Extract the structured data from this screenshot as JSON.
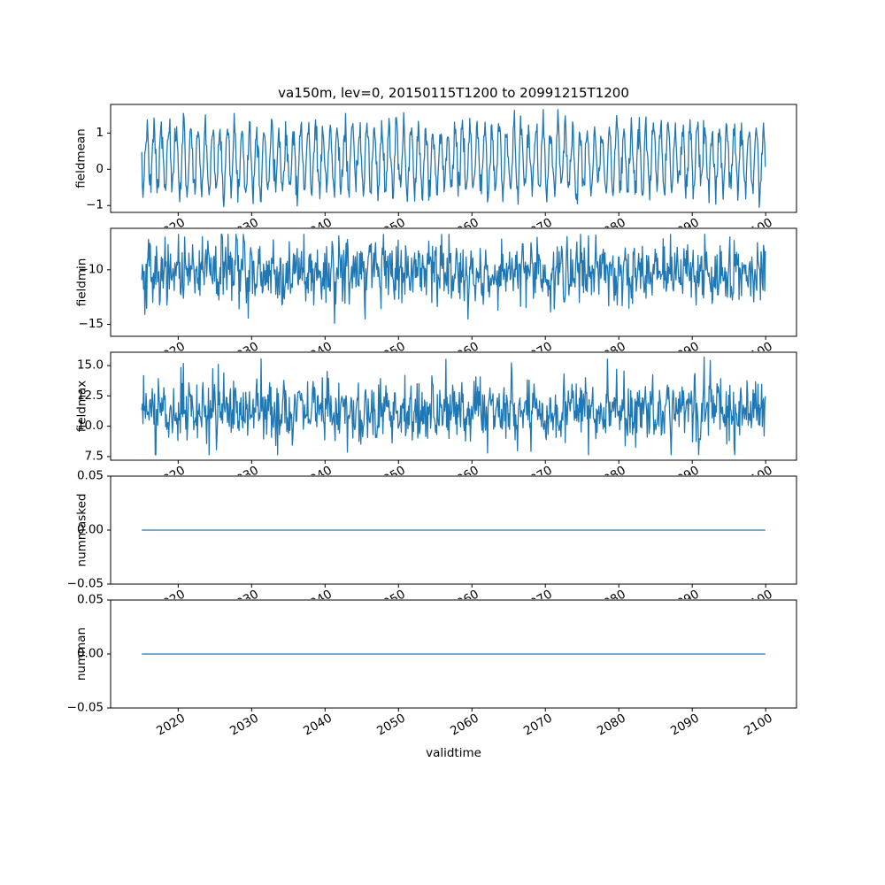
{
  "figure": {
    "title": "va150m, lev=0, 20150115T1200 to 20991215T1200",
    "xlabel": "validtime",
    "background": "#ffffff",
    "line_color": "#1f77b4",
    "frame_color": "#000000",
    "text_color": "#000000"
  },
  "chart_data": [
    {
      "type": "line",
      "ylabel": "fieldmean",
      "xlim": [
        2010.8,
        2104.2
      ],
      "ylim": [
        -1.19,
        1.79
      ],
      "xticks": [
        2020,
        2030,
        2040,
        2050,
        2060,
        2070,
        2080,
        2090,
        2100
      ],
      "xticklabels": [
        "2020",
        "2030",
        "2040",
        "2050",
        "2060",
        "2070",
        "2080",
        "2090",
        "2100"
      ],
      "yticks": [
        -1,
        0,
        1
      ],
      "yticklabels": [
        "−1",
        "0",
        "1"
      ],
      "grid": false,
      "legend": "none",
      "series": [
        {
          "name": "fieldmean",
          "color": "#1f77b4",
          "synth": {
            "kind": "seasonal_noise",
            "x_start": 2015.0417,
            "x_step": 0.0833333,
            "n": 1020,
            "base": 0.28,
            "amp": 0.85,
            "phase": 0.58,
            "noise_sd": 0.22,
            "clip_min": -1.05,
            "clip_max": 1.65,
            "seed": 7
          }
        }
      ]
    },
    {
      "type": "line",
      "ylabel": "fieldmin",
      "xlim": [
        2010.8,
        2104.2
      ],
      "ylim": [
        -16.1,
        -6.2
      ],
      "xticks": [
        2020,
        2030,
        2040,
        2050,
        2060,
        2070,
        2080,
        2090,
        2100
      ],
      "xticklabels": [
        "2020",
        "2030",
        "2040",
        "2050",
        "2060",
        "2070",
        "2080",
        "2090",
        "2100"
      ],
      "yticks": [
        -10,
        -15
      ],
      "yticklabels": [
        "−10",
        "−15"
      ],
      "grid": false,
      "legend": "none",
      "series": [
        {
          "name": "fieldmin",
          "color": "#1f77b4",
          "synth": {
            "kind": "seasonal_noise",
            "x_start": 2015.0417,
            "x_step": 0.0833333,
            "n": 1020,
            "base": -10.2,
            "amp": 0.9,
            "phase": 0.3,
            "noise_sd": 1.45,
            "clip_min": -15.6,
            "clip_max": -6.75,
            "seed": 19
          }
        }
      ]
    },
    {
      "type": "line",
      "ylabel": "fieldmax",
      "xlim": [
        2010.8,
        2104.2
      ],
      "ylim": [
        7.2,
        16.1
      ],
      "xticks": [
        2020,
        2030,
        2040,
        2050,
        2060,
        2070,
        2080,
        2090,
        2100
      ],
      "xticklabels": [
        "2020",
        "2030",
        "2040",
        "2050",
        "2060",
        "2070",
        "2080",
        "2090",
        "2100"
      ],
      "yticks": [
        7.5,
        10.0,
        12.5,
        15.0
      ],
      "yticklabels": [
        "7.5",
        "10.0",
        "12.5",
        "15.0"
      ],
      "grid": false,
      "legend": "none",
      "series": [
        {
          "name": "fieldmax",
          "color": "#1f77b4",
          "synth": {
            "kind": "seasonal_noise",
            "x_start": 2015.0417,
            "x_step": 0.0833333,
            "n": 1020,
            "base": 11.3,
            "amp": 0.6,
            "phase": 0.8,
            "noise_sd": 1.3,
            "clip_min": 7.65,
            "clip_max": 15.7,
            "seed": 31
          }
        }
      ]
    },
    {
      "type": "line",
      "ylabel": "nummasked",
      "xlim": [
        2010.8,
        2104.2
      ],
      "ylim": [
        -0.05,
        0.05
      ],
      "xticks": [
        2020,
        2030,
        2040,
        2050,
        2060,
        2070,
        2080,
        2090,
        2100
      ],
      "xticklabels": [
        "2020",
        "2030",
        "2040",
        "2050",
        "2060",
        "2070",
        "2080",
        "2090",
        "2100"
      ],
      "yticks": [
        -0.05,
        0.0,
        0.05
      ],
      "yticklabels": [
        "−0.05",
        "0.00",
        "0.05"
      ],
      "grid": false,
      "legend": "none",
      "series": [
        {
          "name": "nummasked",
          "color": "#1f77b4",
          "synth": {
            "kind": "constant",
            "x_start": 2015.0417,
            "x_end": 2099.9583,
            "value": 0.0
          }
        }
      ]
    },
    {
      "type": "line",
      "ylabel": "numman",
      "xlim": [
        2010.8,
        2104.2
      ],
      "ylim": [
        -0.05,
        0.05
      ],
      "xticks": [
        2020,
        2030,
        2040,
        2050,
        2060,
        2070,
        2080,
        2090,
        2100
      ],
      "xticklabels": [
        "2020",
        "2030",
        "2040",
        "2050",
        "2060",
        "2070",
        "2080",
        "2090",
        "2100"
      ],
      "yticks": [
        -0.05,
        0.0,
        0.05
      ],
      "yticklabels": [
        "−0.05",
        "0.00",
        "0.05"
      ],
      "grid": false,
      "legend": "none",
      "series": [
        {
          "name": "numman",
          "color": "#1f77b4",
          "synth": {
            "kind": "constant",
            "x_start": 2015.0417,
            "x_end": 2099.9583,
            "value": 0.0
          }
        }
      ]
    }
  ]
}
